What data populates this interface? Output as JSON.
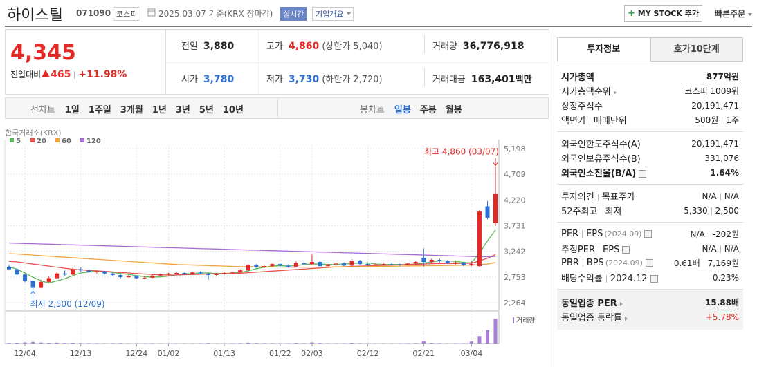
{
  "header": {
    "name": "하이스틸",
    "code": "071090",
    "market": "코스피",
    "date": "2025.03.07 기준(KRX 장마감)",
    "realtime": "실시간",
    "overview": "기업개요",
    "mystock": "MY STOCK 추가",
    "quick_order": "빠른주문"
  },
  "price": {
    "current": "4,345",
    "change_label": "전일대비",
    "change": "465",
    "change_pct": "+11.98%",
    "color": "#e22926"
  },
  "summary": [
    {
      "label": "전일",
      "value": "3,880",
      "color": "#222"
    },
    {
      "label": "고가",
      "value": "4,860",
      "color": "#e22926",
      "note": "(상한가 5,040)"
    },
    {
      "label": "거래량",
      "value": "36,776,918",
      "color": "#222"
    },
    {
      "label": "시가",
      "value": "3,780",
      "color": "#2d6fd2"
    },
    {
      "label": "저가",
      "value": "3,730",
      "color": "#2d6fd2",
      "note": "(하한가 2,720)"
    },
    {
      "label": "거래대금",
      "value": "163,401",
      "color": "#222",
      "unit": "백만"
    }
  ],
  "tabs": {
    "line_label": "선차트",
    "line_periods": [
      "1일",
      "1주일",
      "3개월",
      "1년",
      "3년",
      "5년",
      "10년"
    ],
    "candle_label": "봉차트",
    "candle_periods": [
      "일봉",
      "주봉",
      "월봉"
    ],
    "active_candle_period": 0
  },
  "chart": {
    "type": "candlestick",
    "source": "한국거래소(KRX)",
    "volume_label": "거래량",
    "high_note": "최고 4,860 (03/07)",
    "low_note": "최저 2,500 (12/09)",
    "up_color": "#e22926",
    "down_color": "#2d6fd2",
    "volume_color": "#a77fd8",
    "ylim": [
      2106,
      5264
    ],
    "yticks": [
      {
        "value": 5198,
        "label": "5,198"
      },
      {
        "value": 4709,
        "label": "4,709"
      },
      {
        "value": 4220,
        "label": "4,220"
      },
      {
        "value": 3731,
        "label": "3,731"
      },
      {
        "value": 3242,
        "label": "3,242"
      },
      {
        "value": 2753,
        "label": "2,753"
      },
      {
        "value": 2264,
        "label": "2,264"
      }
    ],
    "vlim": [
      0,
      40
    ],
    "x": [
      null,
      null,
      "12/04",
      null,
      null,
      null,
      null,
      null,
      null,
      "12/13",
      null,
      null,
      null,
      null,
      null,
      null,
      "12/24",
      null,
      null,
      null,
      "01/02",
      null,
      null,
      null,
      null,
      null,
      null,
      "01/13",
      null,
      null,
      null,
      null,
      null,
      null,
      "01/22",
      null,
      null,
      null,
      "02/03",
      null,
      null,
      null,
      null,
      null,
      null,
      "02/12",
      null,
      null,
      null,
      null,
      null,
      null,
      "02/21",
      null,
      null,
      null,
      null,
      null,
      "03/04",
      null,
      null,
      null
    ],
    "ohlc": [
      [
        2950,
        2990,
        2880,
        2900
      ],
      [
        2900,
        2910,
        2780,
        2800
      ],
      [
        2800,
        2810,
        2650,
        2680
      ],
      [
        2680,
        2700,
        2500,
        2560
      ],
      [
        2560,
        2700,
        2550,
        2660
      ],
      [
        2660,
        2760,
        2640,
        2730
      ],
      [
        2730,
        2850,
        2720,
        2820
      ],
      [
        2820,
        2880,
        2780,
        2800
      ],
      [
        2800,
        2930,
        2790,
        2900
      ],
      [
        2900,
        2930,
        2850,
        2880
      ],
      [
        2880,
        2900,
        2830,
        2850
      ],
      [
        2850,
        2880,
        2820,
        2860
      ],
      [
        2860,
        2870,
        2800,
        2820
      ],
      [
        2820,
        2840,
        2770,
        2790
      ],
      [
        2790,
        2810,
        2730,
        2750
      ],
      [
        2750,
        2790,
        2740,
        2770
      ],
      [
        2770,
        2780,
        2720,
        2730
      ],
      [
        2730,
        2760,
        2710,
        2740
      ],
      [
        2740,
        2790,
        2730,
        2780
      ],
      [
        2780,
        2820,
        2770,
        2800
      ],
      [
        2800,
        2830,
        2780,
        2820
      ],
      [
        2820,
        2850,
        2800,
        2830
      ],
      [
        2830,
        2840,
        2790,
        2810
      ],
      [
        2810,
        2850,
        2800,
        2840
      ],
      [
        2840,
        2860,
        2810,
        2820
      ],
      [
        2820,
        2840,
        2700,
        2790
      ],
      [
        2790,
        2830,
        2780,
        2820
      ],
      [
        2820,
        2850,
        2800,
        2830
      ],
      [
        2830,
        2860,
        2820,
        2840
      ],
      [
        2840,
        2900,
        2830,
        2880
      ],
      [
        2880,
        3000,
        2870,
        2980
      ],
      [
        2980,
        3000,
        2920,
        2940
      ],
      [
        2940,
        2980,
        2920,
        2960
      ],
      [
        2960,
        3010,
        2940,
        3000
      ],
      [
        3000,
        3020,
        2950,
        2970
      ],
      [
        2970,
        2990,
        2930,
        2950
      ],
      [
        2950,
        3050,
        2940,
        3020
      ],
      [
        3020,
        3060,
        2980,
        3000
      ],
      [
        3000,
        3180,
        2990,
        3040
      ],
      [
        3040,
        3060,
        2950,
        2960
      ],
      [
        2960,
        3000,
        2950,
        2990
      ],
      [
        2990,
        3020,
        2970,
        3010
      ],
      [
        3010,
        3030,
        2960,
        2970
      ],
      [
        2970,
        3090,
        2960,
        3060
      ],
      [
        3060,
        3080,
        2980,
        3000
      ],
      [
        3000,
        3020,
        2960,
        2980
      ],
      [
        2980,
        3010,
        2970,
        2990
      ],
      [
        2990,
        3020,
        2980,
        3000
      ],
      [
        3000,
        3030,
        2970,
        2990
      ],
      [
        2990,
        3010,
        2960,
        2980
      ],
      [
        2980,
        3020,
        2970,
        3010
      ],
      [
        3010,
        3060,
        2990,
        3040
      ],
      [
        3120,
        3300,
        2950,
        3040
      ],
      [
        3040,
        3100,
        3020,
        3080
      ],
      [
        3080,
        3100,
        3030,
        3060
      ],
      [
        3060,
        3080,
        3000,
        3020
      ],
      [
        3020,
        3050,
        2990,
        3030
      ],
      [
        3030,
        3040,
        2960,
        2980
      ],
      [
        2980,
        3050,
        2960,
        3000
      ],
      [
        2960,
        4030,
        2940,
        4000
      ],
      [
        4100,
        4200,
        3850,
        3880
      ],
      [
        3780,
        4860,
        3730,
        4345
      ]
    ],
    "volume": [
      0.8,
      1.0,
      1.5,
      2.2,
      1.4,
      1.0,
      1.2,
      0.8,
      1.1,
      0.7,
      0.6,
      0.5,
      0.5,
      0.6,
      0.7,
      0.4,
      0.5,
      0.4,
      0.5,
      0.4,
      0.5,
      0.4,
      0.4,
      0.4,
      0.5,
      0.8,
      0.4,
      0.4,
      0.5,
      0.6,
      1.2,
      0.8,
      0.6,
      0.6,
      0.5,
      0.5,
      0.9,
      0.6,
      1.5,
      0.8,
      0.5,
      0.4,
      0.5,
      1.0,
      0.6,
      0.4,
      0.4,
      0.4,
      0.4,
      0.4,
      0.5,
      0.7,
      4.0,
      0.9,
      0.6,
      0.5,
      0.4,
      0.5,
      3.0,
      11.0,
      20.0,
      36.78
    ],
    "ma": [
      {
        "name": "5",
        "color": "#5cb85c",
        "values": [
          2950,
          2900,
          2830,
          2750,
          2680,
          2640,
          2680,
          2720,
          2780,
          2830,
          2850,
          2860,
          2860,
          2840,
          2820,
          2800,
          2780,
          2760,
          2750,
          2755,
          2770,
          2790,
          2810,
          2820,
          2830,
          2830,
          2820,
          2820,
          2830,
          2840,
          2870,
          2910,
          2940,
          2960,
          2970,
          2960,
          2970,
          2990,
          3000,
          3000,
          2990,
          2990,
          3000,
          3010,
          3020,
          3020,
          3000,
          2990,
          2990,
          2990,
          2990,
          3000,
          3020,
          3040,
          3060,
          3060,
          3050,
          3030,
          3020,
          3210,
          3440,
          3650
        ]
      },
      {
        "name": "20",
        "color": "#e8504c",
        "values": [
          3050,
          3040,
          3020,
          3000,
          2980,
          2960,
          2940,
          2920,
          2900,
          2890,
          2880,
          2870,
          2860,
          2850,
          2840,
          2830,
          2820,
          2810,
          2800,
          2795,
          2790,
          2790,
          2795,
          2800,
          2805,
          2810,
          2815,
          2815,
          2820,
          2825,
          2835,
          2845,
          2855,
          2865,
          2875,
          2885,
          2895,
          2905,
          2915,
          2925,
          2935,
          2945,
          2950,
          2955,
          2960,
          2965,
          2970,
          2975,
          2980,
          2985,
          2990,
          2995,
          3000,
          3005,
          3010,
          3010,
          3010,
          3012,
          3015,
          3060,
          3110,
          3180
        ]
      },
      {
        "name": "60",
        "color": "#f5a33c",
        "values": [
          3200,
          3190,
          3180,
          3170,
          3160,
          3150,
          3140,
          3130,
          3120,
          3110,
          3100,
          3090,
          3080,
          3070,
          3060,
          3050,
          3040,
          3030,
          3020,
          3010,
          3000,
          2990,
          2985,
          2980,
          2975,
          2970,
          2965,
          2960,
          2955,
          2950,
          2950,
          2948,
          2946,
          2944,
          2942,
          2940,
          2940,
          2940,
          2940,
          2940,
          2942,
          2944,
          2946,
          2948,
          2950,
          2952,
          2954,
          2956,
          2958,
          2960,
          2962,
          2964,
          2966,
          2968,
          2970,
          2972,
          2974,
          2976,
          2978,
          2990,
          3000,
          3030
        ]
      },
      {
        "name": "120",
        "color": "#a66cd6",
        "values": [
          3400,
          3396,
          3391,
          3387,
          3382,
          3378,
          3374,
          3369,
          3365,
          3360,
          3356,
          3352,
          3347,
          3343,
          3338,
          3334,
          3330,
          3325,
          3321,
          3316,
          3312,
          3308,
          3303,
          3299,
          3294,
          3290,
          3286,
          3281,
          3277,
          3272,
          3268,
          3264,
          3259,
          3255,
          3250,
          3246,
          3242,
          3237,
          3233,
          3228,
          3224,
          3220,
          3215,
          3211,
          3206,
          3202,
          3198,
          3193,
          3189,
          3184,
          3180,
          3176,
          3171,
          3167,
          3162,
          3158,
          3154,
          3149,
          3145,
          3140,
          3140,
          3145
        ]
      }
    ]
  },
  "side": {
    "tabs": [
      "투자정보",
      "호가10단계"
    ],
    "active_tab": 0,
    "sections": [
      {
        "rows": [
          {
            "labels": [
              "시가총액"
            ],
            "values": [
              "877억원"
            ],
            "bold": true
          },
          {
            "labels": [
              "시가총액순위"
            ],
            "arrow": true,
            "values": [
              "코스피 1009위"
            ]
          },
          {
            "labels": [
              "상장주식수"
            ],
            "values": [
              "20,191,471"
            ]
          },
          {
            "labels": [
              "액면가",
              "매매단위"
            ],
            "values": [
              "500원",
              "1주"
            ]
          }
        ]
      },
      {
        "rows": [
          {
            "labels": [
              "외국인한도주식수(A)"
            ],
            "values": [
              "20,191,471"
            ]
          },
          {
            "labels": [
              "외국인보유주식수(B)"
            ],
            "values": [
              "331,076"
            ]
          },
          {
            "labels": [
              "외국인소진율(B/A)"
            ],
            "help": true,
            "values": [
              "1.64%"
            ],
            "bold": true
          }
        ]
      },
      {
        "rows": [
          {
            "labels": [
              "투자의견",
              "목표주가"
            ],
            "values": [
              "N/A",
              "N/A"
            ]
          },
          {
            "labels": [
              "52주최고",
              "최저"
            ],
            "values": [
              "5,330",
              "2,500"
            ]
          }
        ]
      },
      {
        "rows": [
          {
            "labels": [
              "PER",
              "EPS"
            ],
            "sub": "(2024.09)",
            "help": true,
            "values": [
              "N/A",
              "-202원"
            ]
          },
          {
            "labels": [
              "추정PER",
              "EPS"
            ],
            "help": true,
            "values": [
              "N/A",
              "N/A"
            ]
          },
          {
            "labels": [
              "PBR",
              "BPS"
            ],
            "sub": "(2024.09)",
            "help": true,
            "values": [
              "0.61배",
              "7,169원"
            ]
          },
          {
            "labels": [
              "배당수익률",
              "2024.12"
            ],
            "help": true,
            "values": [
              "0.23%"
            ]
          }
        ]
      },
      {
        "shaded": true,
        "rows": [
          {
            "labels": [
              "동일업종 PER"
            ],
            "arrow": true,
            "values": [
              "15.88배"
            ],
            "bold": true
          },
          {
            "labels": [
              "동일업종 등락률"
            ],
            "arrow": true,
            "values": [
              "+5.78%"
            ],
            "color": "#e22926"
          }
        ]
      }
    ]
  }
}
